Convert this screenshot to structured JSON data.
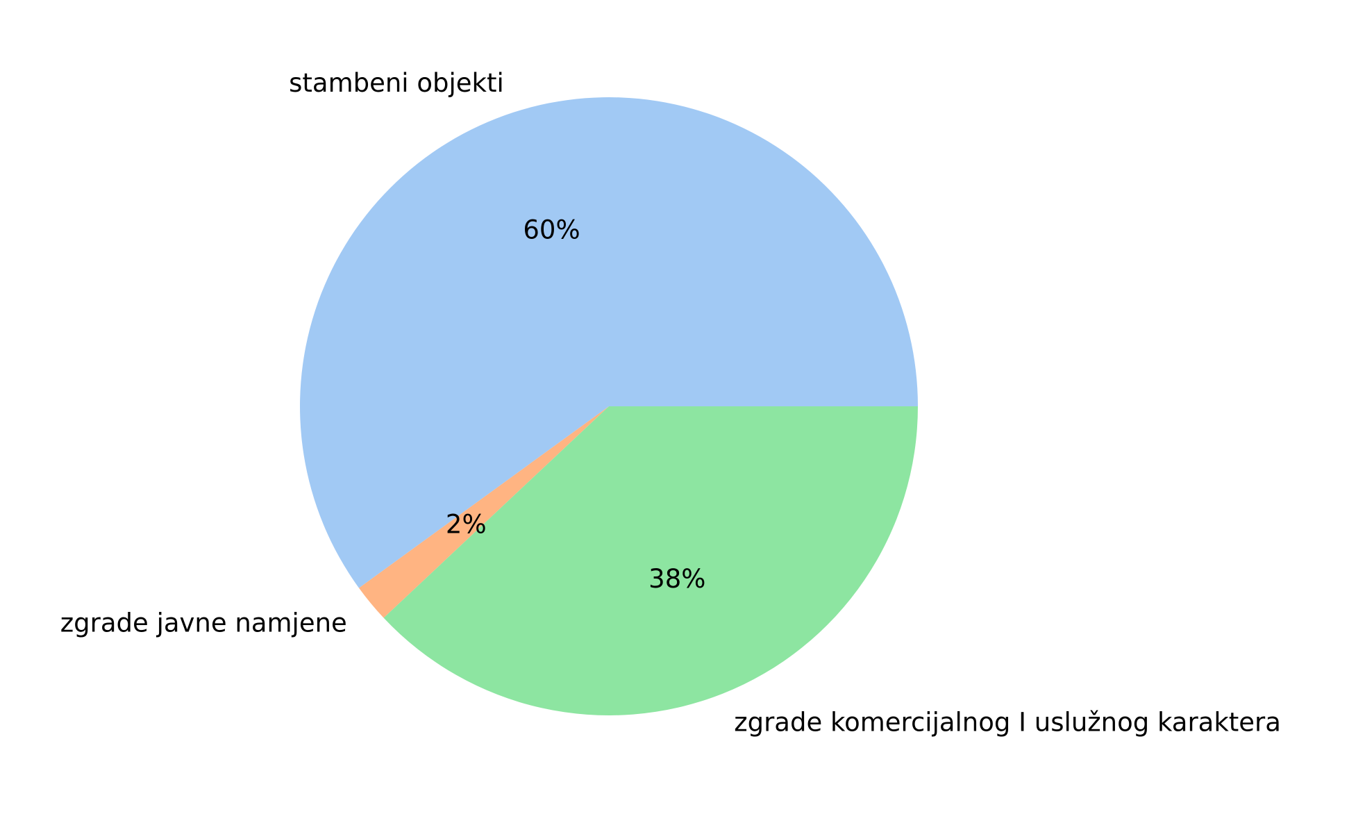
{
  "chart_data": {
    "type": "pie",
    "categories": [
      "stambeni objekti",
      "zgrade javne namjene",
      "zgrade komercijalnog I uslužnog karaktera"
    ],
    "values": [
      60,
      2,
      38
    ],
    "value_labels": [
      "60%",
      "2%",
      "38%"
    ],
    "colors": [
      "#a1c9f4",
      "#ffb482",
      "#8de5a1"
    ],
    "start_angle_deg": 0,
    "direction": "counterclockwise",
    "legend": "none"
  }
}
